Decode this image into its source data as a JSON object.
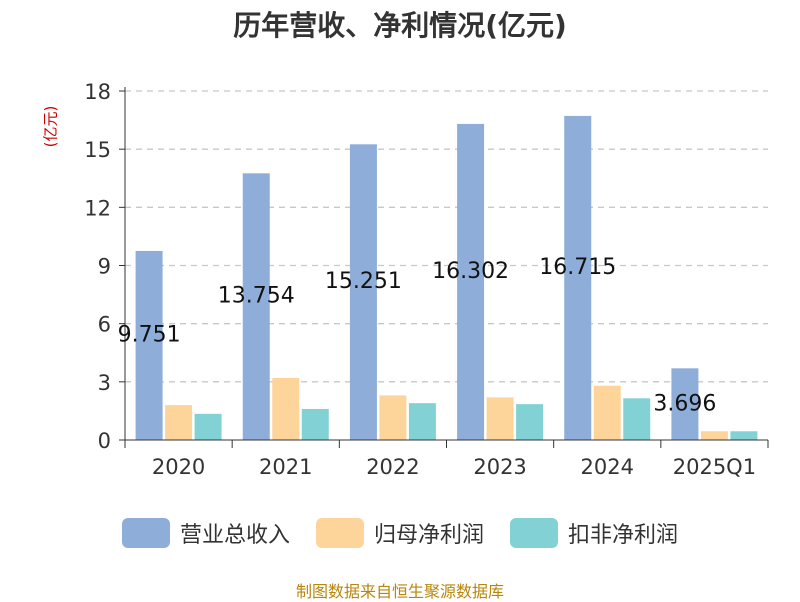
{
  "title": "历年营收、净利情况(亿元)",
  "y_unit": "(亿元)",
  "source": "制图数据来自恒生聚源数据库",
  "chart_data": {
    "type": "bar",
    "categories": [
      "2020",
      "2021",
      "2022",
      "2023",
      "2024",
      "2025Q1"
    ],
    "series": [
      {
        "name": "营业总收入",
        "color": "#8eadd9",
        "values": [
          9.751,
          13.754,
          15.251,
          16.302,
          16.715,
          3.696
        ]
      },
      {
        "name": "归母净利润",
        "color": "#fdd59b",
        "values": [
          1.8,
          3.2,
          2.3,
          2.2,
          2.8,
          0.45
        ]
      },
      {
        "name": "扣非净利润",
        "color": "#82d2d5",
        "values": [
          1.35,
          1.6,
          1.9,
          1.85,
          2.15,
          0.45
        ]
      }
    ],
    "data_labels": [
      "9.751",
      "13.754",
      "15.251",
      "16.302",
      "16.715",
      "3.696"
    ],
    "yticks": [
      "0",
      "3",
      "6",
      "9",
      "12",
      "15",
      "18"
    ],
    "ylim": [
      0,
      18
    ],
    "grid": true,
    "legend_position": "bottom"
  }
}
